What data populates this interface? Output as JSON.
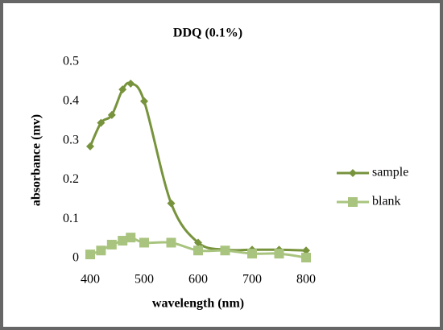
{
  "chart_data": {
    "type": "line",
    "title": "DDQ (0.1%)",
    "x_label": "wavelength (nm)",
    "y_label": "absorbance (mv)",
    "x": [
      400,
      420,
      440,
      460,
      475,
      500,
      550,
      600,
      650,
      700,
      750,
      800
    ],
    "series": [
      {
        "name": "sample",
        "color": "#77933c",
        "marker": "diamond",
        "values": [
          0.285,
          0.345,
          0.365,
          0.43,
          0.445,
          0.4,
          0.14,
          0.04,
          0.022,
          0.022,
          0.022,
          0.02
        ]
      },
      {
        "name": "blank",
        "color": "#a9c47f",
        "marker": "square",
        "values": [
          0.01,
          0.02,
          0.035,
          0.045,
          0.053,
          0.04,
          0.04,
          0.02,
          0.02,
          0.012,
          0.012,
          0.002
        ]
      }
    ],
    "xlim": [
      400,
      800
    ],
    "xticks": [
      400,
      500,
      600,
      700,
      800
    ],
    "ylim": [
      0,
      0.5
    ],
    "yticks": [
      0,
      0.1,
      0.2,
      0.3,
      0.4,
      0.5
    ],
    "grid": false,
    "legend": "right",
    "smooth": true
  }
}
